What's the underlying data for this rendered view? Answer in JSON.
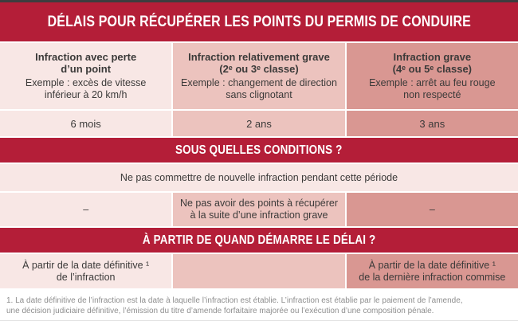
{
  "header": {
    "title": "DÉLAIS POUR RÉCUPÉRER LES POINTS DU PERMIS DE CONDUIRE"
  },
  "table": {
    "columns": [
      {
        "title": "Infraction avec perte\nd’un point",
        "example": "Exemple : excès de vitesse\ninférieur à 20 km/h",
        "duration": "6 mois",
        "extra_condition": "–",
        "start": "À partir de la date définitive ¹\nde l’infraction"
      },
      {
        "title": "Infraction relativement grave\n(2ᵉ ou 3ᵉ classe)",
        "example": "Exemple : changement de direction\nsans clignotant",
        "duration": "2 ans",
        "extra_condition": "Ne pas avoir des points à récupérer\nà la suite d’une infraction grave",
        "start": ""
      },
      {
        "title": "Infraction grave\n(4ᵉ ou 5ᵉ classe)",
        "example": "Exemple : arrêt au feu rouge\nnon respecté",
        "duration": "3 ans",
        "extra_condition": "–",
        "start": "À partir de la date définitive ¹\nde la dernière infraction commise"
      }
    ],
    "sections": {
      "conditions_heading": "SOUS QUELLES CONDITIONS ?",
      "condition_all_columns": "Ne pas commettre de nouvelle infraction pendant cette période",
      "start_heading": "À PARTIR DE QUAND DÉMARRE LE DÉLAI ?"
    }
  },
  "footnote": "1. La date définitive de l’infraction est la date à laquelle l’infraction est établie. L’infraction est établie par le paiement de l’amende,\nune décision judiciaire définitive, l’émission du titre d’amende forfaitaire majorée ou l’exécution d’une composition pénale.",
  "colors": {
    "band_red": "#b41e38",
    "column1_bg": "#f8e7e5",
    "column2_bg": "#ecc3be",
    "column3_bg": "#d99792",
    "text_dark": "#3b3a39",
    "footnote_gray": "#8e8e8e",
    "top_strip": "#3d3d3f"
  }
}
